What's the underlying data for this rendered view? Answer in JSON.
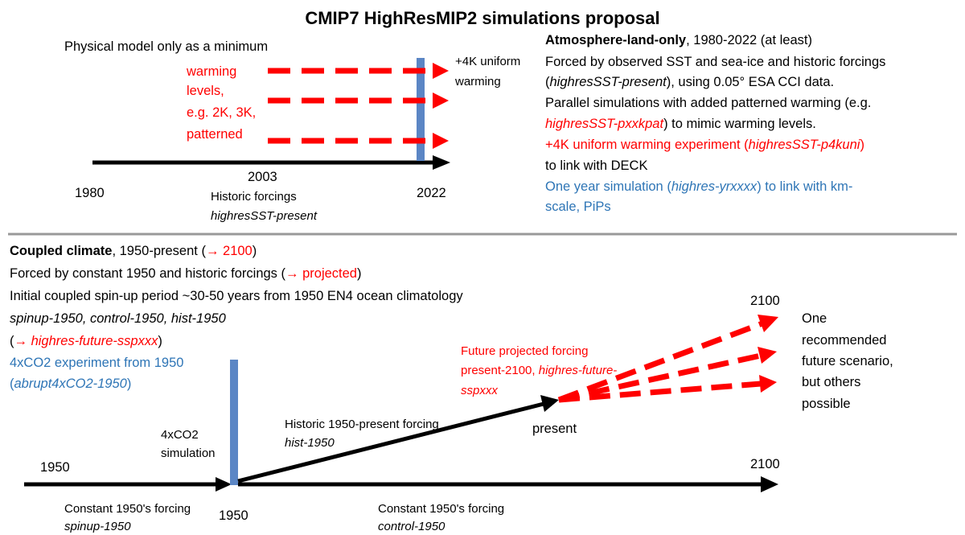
{
  "title": "CMIP7 HighResMIP2 simulations proposal",
  "top_left": {
    "label": "Physical model only as a minimum",
    "warming_levels": [
      "warming",
      "levels,",
      "e.g. 2K, 3K,",
      "patterned"
    ],
    "uniform": [
      "+4K uniform",
      "warming"
    ],
    "year_2003": "2003",
    "year_1980": "1980",
    "year_2022": "2022",
    "historic": "Historic forcings",
    "historic_exp": "highresSST-present"
  },
  "top_right": {
    "lines": [
      [
        "Atmosphere-land-only",
        ", 1980-2022 (at least)"
      ],
      [
        "Forced by observed SST and sea-ice and historic forcings"
      ],
      [
        "(",
        "highresSST-present",
        "), using 0.05° ESA CCI data."
      ],
      [
        "Parallel simulations with added patterned warming (e.g."
      ],
      [
        "highresSST-pxxkpat",
        ") to mimic warming levels."
      ],
      [
        "+4K uniform warming experiment (",
        "highresSST-p4kuni",
        ")"
      ],
      [
        "to link with DECK"
      ],
      [
        "One year simulation (",
        "highres-yrxxxx",
        ") to link with km-"
      ],
      [
        "scale, PiPs"
      ]
    ]
  },
  "bottom_left": {
    "lines": [
      [
        "Coupled climate",
        ", 1950-present (",
        "→ 2100",
        ")"
      ],
      [
        "Forced by constant 1950 and historic forcings (",
        "→ projected",
        ")"
      ],
      [
        "Initial coupled spin-up period ~30-50 years from 1950 EN4 ocean climatology"
      ],
      [
        "spinup-1950, control-1950, hist-1950"
      ],
      [
        "(",
        "→ ",
        "highres-future-sspxxx",
        ")"
      ],
      [
        "4xCO2 experiment from 1950"
      ],
      [
        "(",
        "abrupt4xCO2-1950",
        ")"
      ]
    ]
  },
  "bottom_diagram": {
    "co2_sim": [
      "4xCO2",
      "simulation"
    ],
    "historic": [
      "Historic 1950-present forcing",
      "hist-1950"
    ],
    "future": [
      "Future projected forcing",
      "present-2100, ",
      "highres-future-",
      "sspxxx"
    ],
    "year_2100_top": "2100",
    "present": "present",
    "scenario": [
      "One",
      "recommended",
      "future scenario,",
      "but others",
      "possible"
    ],
    "year_1950_left": "1950",
    "year_2100_bottom": "2100",
    "year_1950_bar": "1950",
    "spinup": [
      "Constant 1950's forcing",
      "spinup-1950"
    ],
    "control": [
      "Constant 1950's forcing",
      "control-1950"
    ]
  }
}
